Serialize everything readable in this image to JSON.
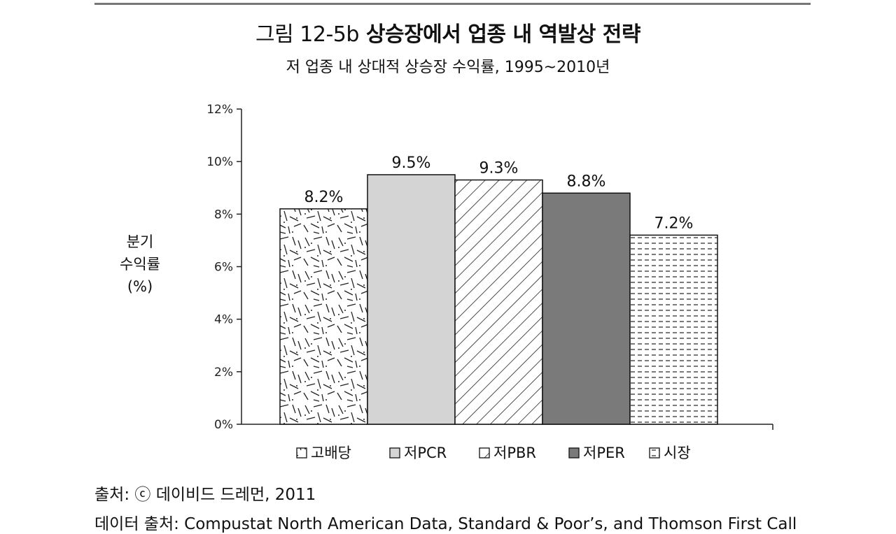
{
  "figure": {
    "number": "그림 12-5b",
    "title": "상승장에서 업종 내 역발상 전략",
    "subtitle": "저 업종 내 상대적 상승장 수익률, 1995~2010년"
  },
  "chart_data": {
    "type": "bar",
    "title": "상승장에서 업종 내 역발상 전략",
    "ylabel_lines": [
      "분기",
      "수익률",
      "(%)"
    ],
    "y_ticks": [
      "0%",
      "2%",
      "4%",
      "6%",
      "8%",
      "10%",
      "12%"
    ],
    "ylim": [
      0,
      12
    ],
    "grid": false,
    "legend_position": "bottom",
    "categories": [
      "고배당",
      "저PCR",
      "저PBR",
      "저PER",
      "시장"
    ],
    "values": [
      8.2,
      9.5,
      9.3,
      8.8,
      7.2
    ],
    "data_labels": [
      "8.2%",
      "9.5%",
      "9.3%",
      "8.8%",
      "7.2%"
    ],
    "legend": [
      "고배당",
      "저PCR",
      "저PBR",
      "저PER",
      "시장"
    ],
    "fills": [
      "random-dashes",
      "#d4d4d4",
      "diagonal-hatch",
      "#7a7a7a",
      "horizontal-dashes"
    ]
  },
  "footer": {
    "source": "출처: ⓒ 데이비드 드레먼, 2011",
    "data_source": "데이터 출처: Compustat North American Data, Standard & Poor’s, and Thomson First Call"
  }
}
